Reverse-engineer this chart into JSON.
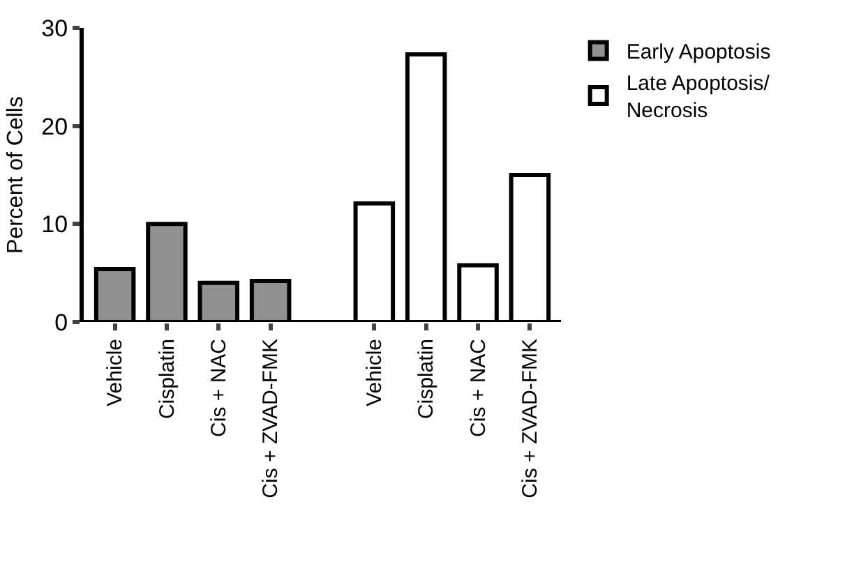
{
  "chart_data": {
    "type": "bar",
    "ylabel": "Percent of Cells",
    "categories": [
      "Vehicle",
      "Cisplatin",
      "Cis + NAC",
      "Cis + ZVAD-FMK",
      null,
      "Vehicle",
      "Cisplatin",
      "Cis + NAC",
      "Cis + ZVAD-FMK"
    ],
    "series": [
      {
        "name": "Early Apoptosis",
        "color": "#909090",
        "values": [
          5.4,
          10.0,
          4.0,
          4.2,
          null,
          null,
          null,
          null,
          null
        ]
      },
      {
        "name": "Late Apoptosis/\nNecrosis",
        "color": "#ffffff",
        "values": [
          null,
          null,
          null,
          null,
          null,
          12.1,
          27.3,
          5.8,
          15.0
        ]
      }
    ],
    "ylim": [
      0,
      30
    ],
    "yticks": [
      0,
      10,
      20,
      30
    ],
    "grid": false,
    "legend": "top right"
  }
}
